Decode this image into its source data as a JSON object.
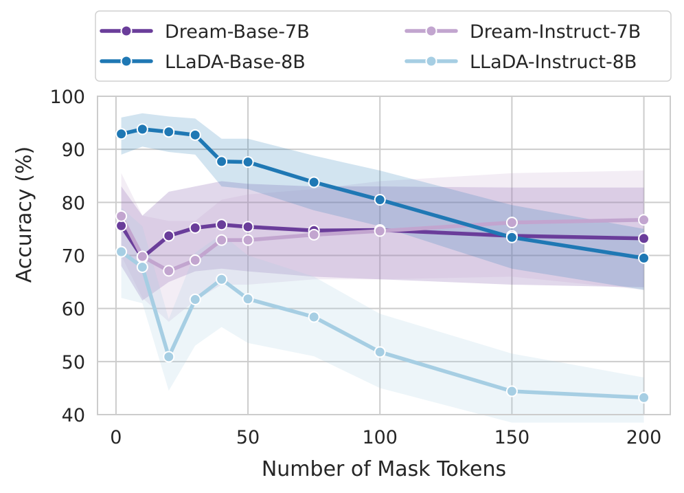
{
  "chart_data": {
    "type": "line",
    "title": "",
    "xlabel": "Number of Mask Tokens",
    "ylabel": "Accuracy (%)",
    "xlim": [
      -7,
      210
    ],
    "ylim": [
      40,
      100
    ],
    "xticks": [
      0,
      50,
      100,
      150,
      200
    ],
    "yticks": [
      40,
      50,
      60,
      70,
      80,
      90,
      100
    ],
    "grid": true,
    "legend_position": "top",
    "x": [
      2,
      10,
      20,
      30,
      40,
      50,
      75,
      100,
      150,
      200
    ],
    "series": [
      {
        "name": "Dream-Base-7B",
        "color": "#6a3d9a",
        "values": [
          75.6,
          69.6,
          73.7,
          75.2,
          75.8,
          75.4,
          74.7,
          74.8,
          73.7,
          73.2
        ],
        "lower": [
          68,
          61.5,
          65,
          67,
          67.5,
          67,
          66,
          65.5,
          64.5,
          64
        ],
        "upper": [
          83,
          77.5,
          82,
          83,
          84,
          83.5,
          83,
          83,
          82.8,
          82.8
        ]
      },
      {
        "name": "Dream-Instruct-7B",
        "color": "#c2a5cf",
        "values": [
          77.4,
          69.8,
          67.1,
          69.1,
          72.9,
          72.9,
          73.9,
          74.6,
          76.2,
          76.7
        ],
        "lower": [
          70,
          62,
          57.5,
          61.5,
          64.5,
          64.5,
          65.5,
          65.5,
          66,
          63.5
        ],
        "upper": [
          85.5,
          77.5,
          76.5,
          76.5,
          80.5,
          81.5,
          82.5,
          84,
          85.5,
          86
        ]
      },
      {
        "name": "LLaDA-Base-8B",
        "color": "#1f78b4",
        "values": [
          92.9,
          93.8,
          93.3,
          92.7,
          87.7,
          87.6,
          83.8,
          80.5,
          73.4,
          69.5
        ],
        "lower": [
          89,
          90.5,
          89.5,
          89,
          83,
          82.5,
          78.5,
          75.5,
          67.5,
          63.5
        ],
        "upper": [
          96,
          96.8,
          96.2,
          95.8,
          92,
          92,
          88.8,
          86,
          79.5,
          75
        ]
      },
      {
        "name": "LLaDA-Instruct-8B",
        "color": "#a6cee3",
        "values": [
          70.7,
          67.8,
          50.9,
          61.7,
          65.5,
          61.8,
          58.4,
          51.8,
          44.4,
          43.2
        ],
        "lower": [
          62,
          61,
          44.5,
          53,
          56.5,
          53.5,
          51,
          45,
          38.5,
          38.5
        ],
        "upper": [
          79,
          75.5,
          58,
          70.5,
          74,
          70,
          66,
          59,
          51.5,
          47
        ]
      }
    ]
  }
}
